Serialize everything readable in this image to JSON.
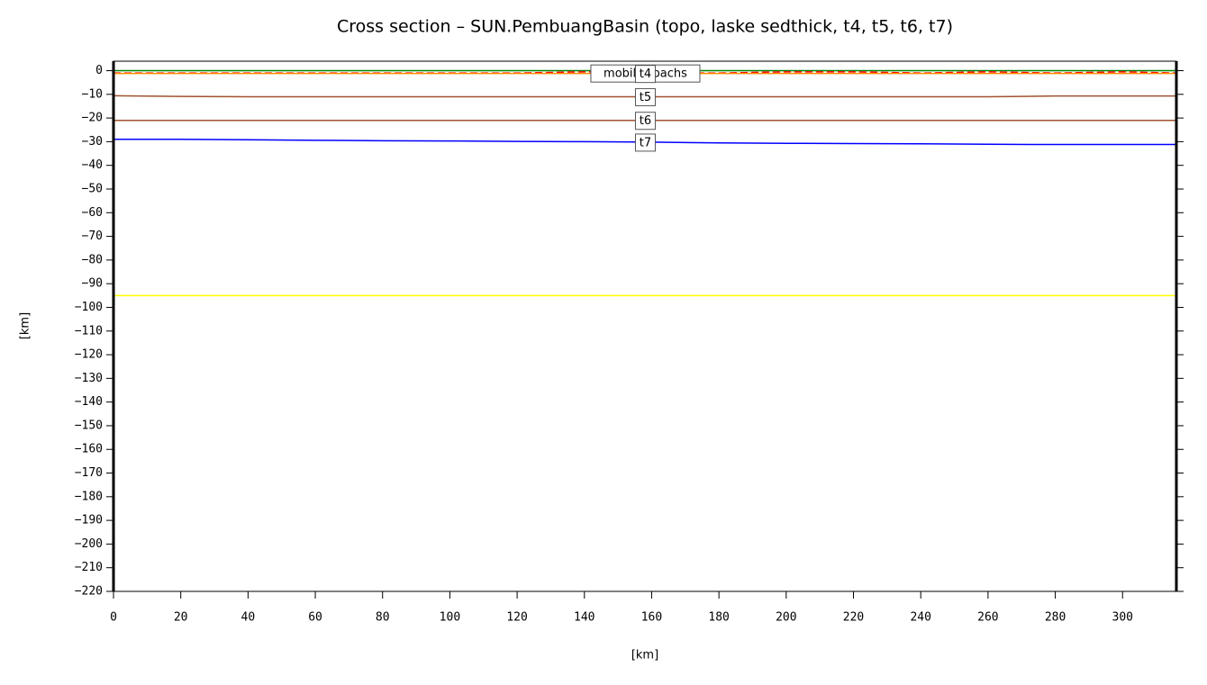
{
  "chart_data": {
    "type": "line",
    "title": "Cross section – SUN.PembuangBasin (topo, laske sedthick, t4, t5, t6, t7)",
    "x_label": "[km]",
    "y_label": "[km]",
    "x": [
      0,
      20,
      40,
      60,
      80,
      100,
      120,
      140,
      160,
      180,
      200,
      220,
      240,
      260,
      280,
      300,
      316
    ],
    "xlim": [
      0,
      316
    ],
    "ylim": [
      -220,
      4
    ],
    "xticks": [
      0,
      20,
      40,
      60,
      80,
      100,
      120,
      140,
      160,
      180,
      200,
      220,
      240,
      260,
      280,
      300
    ],
    "yticks": [
      0,
      {
        "value": -10,
        "label": "−10"
      },
      {
        "value": -20,
        "label": "−20"
      },
      {
        "value": -30,
        "label": "−30"
      },
      {
        "value": -40,
        "label": "−40"
      },
      {
        "value": -50,
        "label": "−50"
      },
      {
        "value": -60,
        "label": "−60"
      },
      {
        "value": -70,
        "label": "−70"
      },
      {
        "value": -80,
        "label": "−80"
      },
      {
        "value": -90,
        "label": "−90"
      },
      {
        "value": -100,
        "label": "−100"
      },
      {
        "value": -110,
        "label": "−110"
      },
      {
        "value": -120,
        "label": "−120"
      },
      {
        "value": -130,
        "label": "−130"
      },
      {
        "value": -140,
        "label": "−140"
      },
      {
        "value": -150,
        "label": "−150"
      },
      {
        "value": -160,
        "label": "−160"
      },
      {
        "value": -170,
        "label": "−170"
      },
      {
        "value": -180,
        "label": "−180"
      },
      {
        "value": -190,
        "label": "−190"
      },
      {
        "value": -200,
        "label": "−200"
      },
      {
        "value": -210,
        "label": "−210"
      },
      {
        "value": -220,
        "label": "−220"
      }
    ],
    "series": [
      {
        "color": "#ffff00",
        "values": [
          -95,
          -95,
          -95,
          -95,
          -95,
          -95,
          -95,
          -95,
          -95,
          -95,
          -95,
          -95,
          -95,
          -95,
          -95,
          -95,
          -95
        ]
      },
      {
        "color": "#008000",
        "values": [
          0,
          0,
          0,
          0,
          0,
          0,
          0,
          0,
          0,
          0,
          0,
          0,
          0,
          0,
          0,
          0,
          0
        ]
      },
      {
        "name": "mobilisopachs",
        "color": "#ff0000",
        "dashed": true,
        "values": [
          -1,
          -1,
          -1,
          -1,
          -1,
          -1,
          -1,
          -0.5,
          -1,
          -1,
          -0.5,
          -0.5,
          -1,
          -0.5,
          -1,
          -0.5,
          -1
        ]
      },
      {
        "name": "t4",
        "color": "#ff8c00",
        "values": [
          -1.2,
          -1.2,
          -1.2,
          -1.2,
          -1.2,
          -1.2,
          -1.2,
          -1.2,
          -1.2,
          -1.2,
          -1.2,
          -1.2,
          -1.2,
          -1.2,
          -1.2,
          -1.2,
          -1.2
        ]
      },
      {
        "name": "t5",
        "color": "#a0522d",
        "values": [
          -10.6,
          -10.9,
          -11,
          -11,
          -11,
          -11,
          -11,
          -11,
          -11,
          -11,
          -11,
          -11,
          -11,
          -11,
          -10.7,
          -10.7,
          -10.7
        ]
      },
      {
        "name": "t6",
        "color": "#a0522d",
        "values": [
          -21,
          -21,
          -21,
          -21,
          -21,
          -21,
          -21,
          -21,
          -21,
          -21,
          -21,
          -21,
          -21,
          -21,
          -21,
          -21,
          -21
        ]
      },
      {
        "name": "t7",
        "color": "#0000ff",
        "values": [
          -29,
          -29,
          -29.2,
          -29.4,
          -29.6,
          -29.7,
          -29.9,
          -30,
          -30.2,
          -30.5,
          -30.7,
          -30.8,
          -30.9,
          -31.1,
          -31.2,
          -31.2,
          -31.2
        ]
      }
    ]
  }
}
